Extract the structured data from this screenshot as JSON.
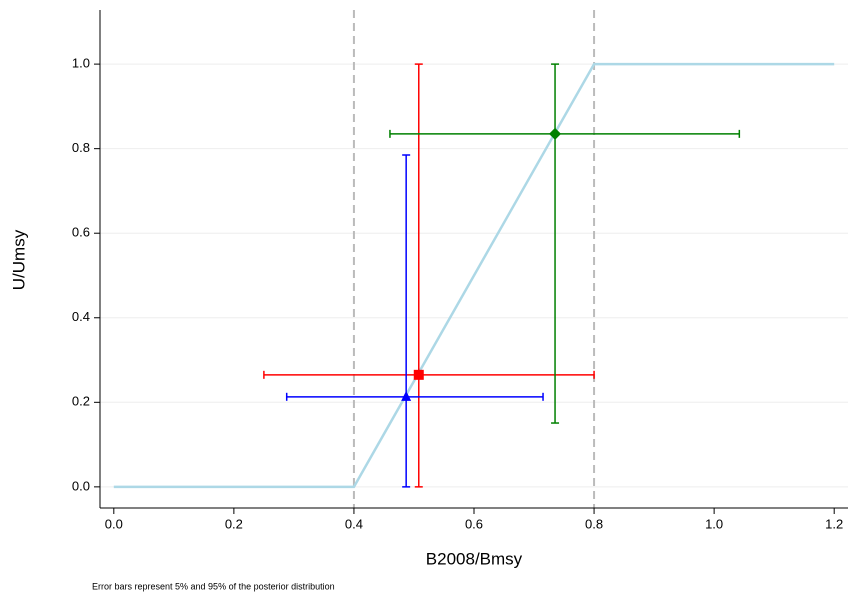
{
  "chart_data": {
    "type": "errorbar-scatter",
    "xlabel": "B2008/Bmsy",
    "ylabel": "U/Umsy",
    "footnote": "Error bars represent 5% and 95% of the posterior distribution",
    "xlim": [
      -0.023,
      1.223
    ],
    "ylim": [
      -0.05,
      1.128
    ],
    "xticks": [
      {
        "value": 0,
        "label": "0.0"
      },
      0.2,
      0.4,
      0.6,
      0.8,
      {
        "value": 1,
        "label": "1.0"
      },
      1.2
    ],
    "yticks": [
      {
        "value": 0,
        "label": "0.0"
      },
      0.2,
      0.4,
      0.6,
      0.8,
      {
        "value": 1,
        "label": "1.0"
      }
    ],
    "grid": true,
    "vlines": [
      0.4,
      0.8
    ],
    "vline_color": "#bbbbbb",
    "control_line": {
      "color": "#add8e6",
      "x": [
        0,
        0.4,
        0.8,
        1.2
      ],
      "y": [
        0,
        0,
        1,
        1
      ]
    },
    "series": [
      {
        "color": "#ff0000",
        "marker": "square",
        "x": 0.508,
        "y": 0.265,
        "xerr": [
          0.25,
          0.8
        ],
        "yerr": [
          0,
          1.0
        ]
      },
      {
        "color": "#0000ff",
        "marker": "triangle",
        "x": 0.487,
        "y": 0.213,
        "xerr": [
          0.288,
          0.715
        ],
        "yerr": [
          0,
          0.785
        ]
      },
      {
        "color": "#008000",
        "marker": "diamond",
        "x": 0.735,
        "y": 0.835,
        "xerr": [
          0.46,
          1.042
        ],
        "yerr": [
          0.151,
          1.0
        ]
      }
    ]
  }
}
